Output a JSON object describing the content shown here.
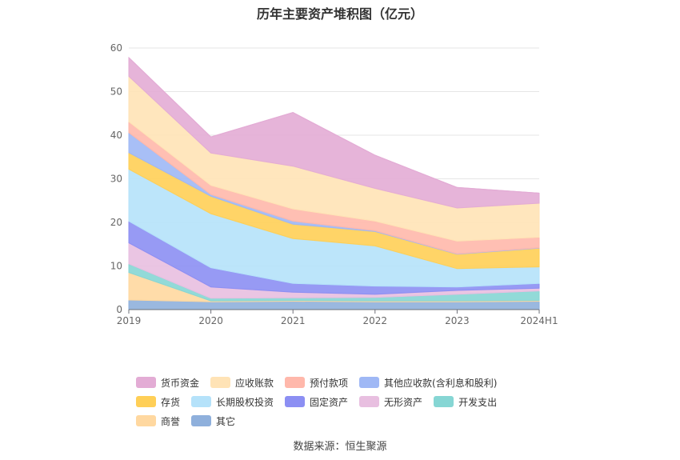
{
  "chart_data": {
    "type": "area",
    "title": "历年主要资产堆积图（亿元）",
    "categories": [
      "2019",
      "2020",
      "2021",
      "2022",
      "2023",
      "2024H1"
    ],
    "ylim": [
      0,
      60
    ],
    "yticks": [
      0,
      10,
      20,
      30,
      40,
      50,
      60
    ],
    "grid": true,
    "legend_position": "bottom",
    "series": [
      {
        "name": "其它",
        "color": "#8fb0dc",
        "values": [
          2.2,
          1.8,
          1.9,
          1.8,
          1.8,
          1.9
        ]
      },
      {
        "name": "商誉",
        "color": "#ffd8a0",
        "values": [
          6.3,
          0.2,
          0.2,
          0.2,
          0.2,
          0.2
        ]
      },
      {
        "name": "开发支出",
        "color": "#86d6d4",
        "values": [
          2.0,
          0.6,
          0.6,
          0.8,
          1.5,
          2.2
        ]
      },
      {
        "name": "无形资产",
        "color": "#e8bfe0",
        "values": [
          4.8,
          2.6,
          1.3,
          0.7,
          0.9,
          0.6
        ]
      },
      {
        "name": "固定资产",
        "color": "#8c8ff3",
        "values": [
          5.0,
          4.4,
          2.0,
          1.9,
          0.8,
          1.1
        ]
      },
      {
        "name": "长期股权投资",
        "color": "#b5e2fa",
        "values": [
          11.9,
          12.4,
          10.3,
          9.2,
          4.2,
          3.8
        ]
      },
      {
        "name": "存货",
        "color": "#ffcf57",
        "values": [
          3.8,
          4.0,
          3.3,
          3.3,
          3.3,
          4.3
        ]
      },
      {
        "name": "其他应收款(含利息和股利)",
        "color": "#9fb8f5",
        "values": [
          4.6,
          0.4,
          0.7,
          0.2,
          0.1,
          0.1
        ]
      },
      {
        "name": "预付款项",
        "color": "#ffb8ab",
        "values": [
          2.5,
          2.1,
          2.8,
          2.2,
          2.9,
          2.4
        ]
      },
      {
        "name": "应收账款",
        "color": "#ffe3b6",
        "values": [
          10.4,
          7.4,
          9.8,
          7.5,
          7.6,
          7.8
        ]
      },
      {
        "name": "货币资金",
        "color": "#e3acd5",
        "values": [
          4.3,
          3.7,
          12.3,
          7.6,
          4.7,
          2.3
        ]
      }
    ]
  },
  "legend_order": [
    "货币资金",
    "应收账款",
    "预付款项",
    "其他应收款(含利息和股利)",
    "存货",
    "长期股权投资",
    "固定资产",
    "无形资产",
    "开发支出",
    "商誉",
    "其它"
  ],
  "source": "数据来源：恒生聚源"
}
